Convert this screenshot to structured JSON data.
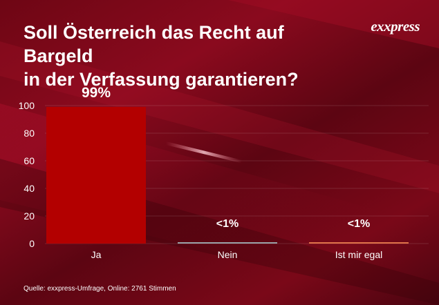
{
  "brand": {
    "logo_text": "exxpress"
  },
  "header": {
    "title_line1": "Soll Österreich das Recht auf Bargeld",
    "title_line2": "in der Verfassung garantieren?"
  },
  "source": "Quelle:  exxpress-Umfrage, Online: 2761 Stimmen",
  "colors": {
    "background": "#7a0818",
    "bar_ja": "#b30000",
    "bar_nein": "#9aa3a8",
    "bar_egal": "#e0744a",
    "text": "#ffffff"
  },
  "chart_data": {
    "type": "bar",
    "categories": [
      "Ja",
      "Nein",
      "Ist mir egal"
    ],
    "values": [
      99,
      0.5,
      0.5
    ],
    "data_labels": [
      "99%",
      "<1%",
      "<1%"
    ],
    "yticks": [
      0,
      20,
      40,
      60,
      80,
      100
    ],
    "ylim": [
      0,
      100
    ],
    "grid": true,
    "legend": "none"
  }
}
